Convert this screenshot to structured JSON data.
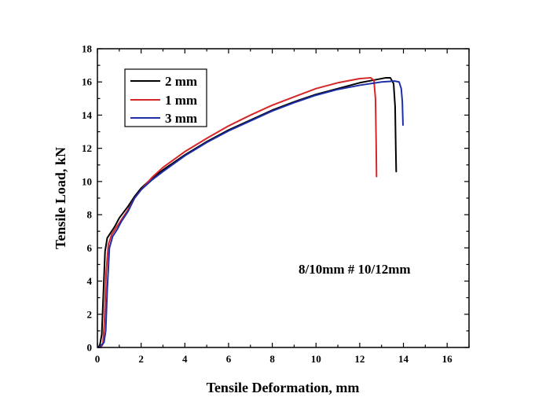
{
  "chart_data": {
    "type": "line",
    "title": "",
    "xlabel": "Tensile Deformation, mm",
    "ylabel": "Tensile Load, kN",
    "xlim": [
      0,
      17
    ],
    "ylim": [
      0,
      18
    ],
    "xticks": [
      "0",
      "2",
      "4",
      "6",
      "8",
      "10",
      "12",
      "14",
      "16"
    ],
    "yticks": [
      "0",
      "2",
      "4",
      "6",
      "8",
      "10",
      "12",
      "14",
      "16",
      "18"
    ],
    "legend_position": "top-left",
    "grid": false,
    "annotation": "8/10mm # 10/12mm",
    "series": [
      {
        "name": "2 mm",
        "color": "#000000",
        "points": [
          [
            0.05,
            0
          ],
          [
            0.12,
            0.2
          ],
          [
            0.2,
            0.8
          ],
          [
            0.28,
            3.5
          ],
          [
            0.35,
            5.8
          ],
          [
            0.45,
            6.6
          ],
          [
            0.6,
            6.9
          ],
          [
            0.8,
            7.3
          ],
          [
            1.0,
            7.8
          ],
          [
            1.4,
            8.5
          ],
          [
            1.7,
            9.1
          ],
          [
            2.0,
            9.6
          ],
          [
            2.5,
            10.2
          ],
          [
            3,
            10.7
          ],
          [
            4,
            11.6
          ],
          [
            5,
            12.4
          ],
          [
            6,
            13.1
          ],
          [
            7,
            13.7
          ],
          [
            8,
            14.3
          ],
          [
            9,
            14.8
          ],
          [
            10,
            15.25
          ],
          [
            11,
            15.6
          ],
          [
            12,
            15.95
          ],
          [
            12.8,
            16.15
          ],
          [
            13.2,
            16.25
          ],
          [
            13.4,
            16.25
          ],
          [
            13.55,
            15.9
          ],
          [
            13.62,
            14.5
          ],
          [
            13.65,
            12.0
          ],
          [
            13.67,
            10.6
          ]
        ]
      },
      {
        "name": "1 mm",
        "color": "#d62728",
        "points": [
          [
            0.15,
            0
          ],
          [
            0.25,
            0.2
          ],
          [
            0.32,
            1.5
          ],
          [
            0.4,
            4.5
          ],
          [
            0.5,
            6.2
          ],
          [
            0.65,
            6.8
          ],
          [
            0.85,
            7.2
          ],
          [
            1.1,
            7.7
          ],
          [
            1.4,
            8.3
          ],
          [
            1.7,
            9.0
          ],
          [
            2.0,
            9.5
          ],
          [
            2.5,
            10.25
          ],
          [
            3,
            10.85
          ],
          [
            4,
            11.8
          ],
          [
            5,
            12.6
          ],
          [
            6,
            13.35
          ],
          [
            7,
            14.0
          ],
          [
            8,
            14.6
          ],
          [
            9,
            15.1
          ],
          [
            10,
            15.6
          ],
          [
            11,
            15.95
          ],
          [
            12,
            16.2
          ],
          [
            12.5,
            16.25
          ],
          [
            12.65,
            16.1
          ],
          [
            12.72,
            15.0
          ],
          [
            12.75,
            12.5
          ],
          [
            12.77,
            10.3
          ]
        ]
      },
      {
        "name": "3 mm",
        "color": "#1f2fa8",
        "points": [
          [
            0.08,
            0
          ],
          [
            0.15,
            0.1
          ],
          [
            0.3,
            0.3
          ],
          [
            0.38,
            1.0
          ],
          [
            0.45,
            3.5
          ],
          [
            0.55,
            6.0
          ],
          [
            0.7,
            6.7
          ],
          [
            0.9,
            7.1
          ],
          [
            1.1,
            7.6
          ],
          [
            1.4,
            8.2
          ],
          [
            1.7,
            9.0
          ],
          [
            2.0,
            9.5
          ],
          [
            2.5,
            10.1
          ],
          [
            3,
            10.6
          ],
          [
            4,
            11.55
          ],
          [
            5,
            12.35
          ],
          [
            6,
            13.05
          ],
          [
            7,
            13.65
          ],
          [
            8,
            14.25
          ],
          [
            9,
            14.75
          ],
          [
            10,
            15.2
          ],
          [
            11,
            15.55
          ],
          [
            12,
            15.8
          ],
          [
            13,
            16.0
          ],
          [
            13.6,
            16.05
          ],
          [
            13.8,
            16.0
          ],
          [
            13.9,
            15.6
          ],
          [
            13.95,
            14.8
          ],
          [
            13.98,
            13.4
          ]
        ]
      }
    ]
  }
}
